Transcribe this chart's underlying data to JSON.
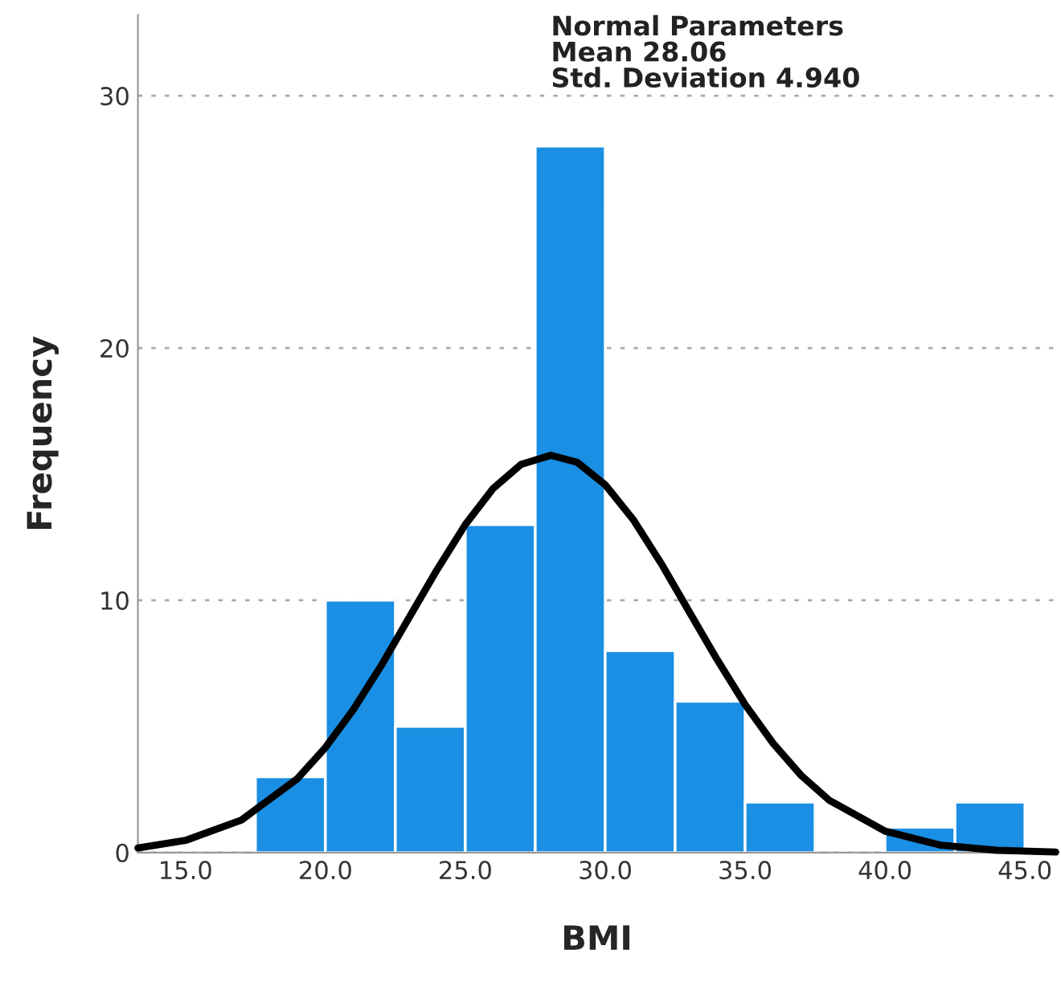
{
  "chart_data": {
    "type": "histogram",
    "xlabel": "BMI",
    "ylabel": "Frequency",
    "bins": [
      17.5,
      20,
      22.5,
      25,
      27.5,
      30,
      32.5,
      35,
      37.5,
      40,
      42.5,
      45
    ],
    "values": [
      3,
      10,
      5,
      13,
      28,
      8,
      6,
      2,
      0,
      1,
      2
    ],
    "color": "#1a8fe3",
    "series": [
      {
        "type": "line",
        "color": "#000000",
        "x": [
          13.3,
          15,
          17,
          19,
          20,
          21,
          22,
          23,
          24,
          25,
          26,
          27,
          28.06,
          29,
          30,
          31,
          32,
          33,
          34,
          35,
          36,
          37,
          38,
          40,
          42,
          44,
          46.1
        ],
        "values": [
          0.18,
          0.48,
          1.29,
          2.93,
          4.16,
          5.67,
          7.42,
          9.33,
          11.23,
          13.0,
          14.44,
          15.39,
          15.75,
          15.47,
          14.58,
          13.2,
          11.46,
          9.55,
          7.65,
          5.87,
          4.33,
          3.06,
          2.08,
          0.85,
          0.29,
          0.09,
          0.02
        ]
      }
    ],
    "annotations": [
      "Normal Parameters\nMean 28.06\nStd. Deviation 4.940"
    ],
    "xlim": [
      13.3,
      46.1
    ],
    "ylim": [
      0,
      33.2
    ],
    "xticks": [
      {
        "value": 15,
        "label": "15.0"
      },
      {
        "value": 20,
        "label": "20.0"
      },
      {
        "value": 25,
        "label": "25.0"
      },
      {
        "value": 30,
        "label": "30.0"
      },
      {
        "value": 35,
        "label": "35.0"
      },
      {
        "value": 40,
        "label": "40.0"
      },
      {
        "value": 45,
        "label": "45.0"
      }
    ],
    "yticks": [
      0,
      10,
      20,
      30
    ],
    "grid": "y",
    "legend": false
  }
}
